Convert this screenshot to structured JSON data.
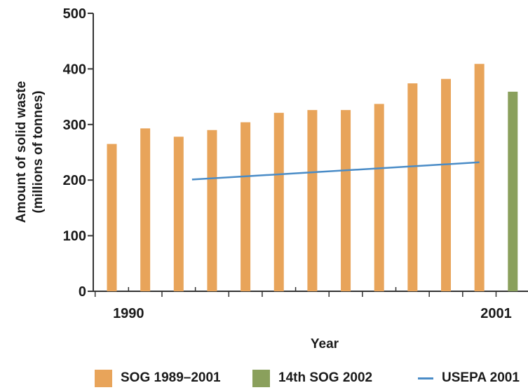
{
  "chart_data": {
    "type": "bar",
    "xlabel": "Year",
    "ylabel": "Amount of solid waste",
    "ylabel_sub": "(millions of tonnes)",
    "ylim": [
      0,
      500
    ],
    "yticks": [
      0,
      100,
      200,
      300,
      400,
      500
    ],
    "x_tick_labels": [
      {
        "year": 1990,
        "label": "1990"
      },
      {
        "year": 2001,
        "label": "2001"
      }
    ],
    "colors": {
      "sog": "#e8a45a",
      "sog14": "#8aa05c",
      "usepa": "#4a8cc7"
    },
    "series": [
      {
        "name": "SOG 1989–2001",
        "type": "bar",
        "x": [
          1989,
          1990,
          1991,
          1992,
          1993,
          1994,
          1995,
          1996,
          1997,
          1998,
          1999,
          2000
        ],
        "values": [
          265,
          293,
          278,
          290,
          304,
          321,
          326,
          326,
          337,
          374,
          382,
          409
        ]
      },
      {
        "name": "14th SOG 2002",
        "type": "bar",
        "x": [
          2001
        ],
        "values": [
          359
        ]
      },
      {
        "name": "USEPA 2001",
        "type": "line",
        "x": [
          1991.4,
          2000
        ],
        "values": [
          201,
          232
        ]
      }
    ],
    "legend_position": "bottom",
    "grid": false
  }
}
